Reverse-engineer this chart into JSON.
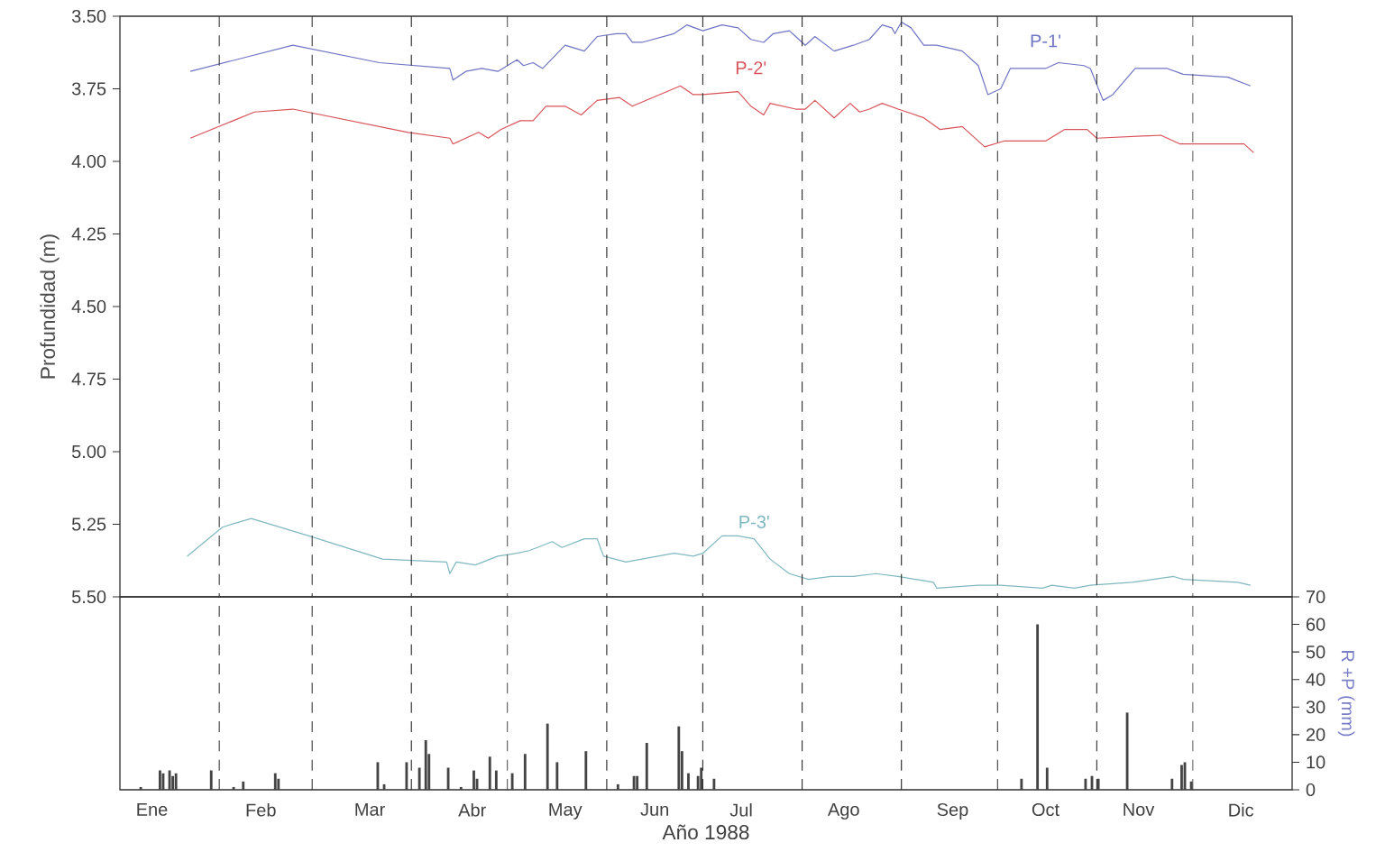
{
  "chart_data": [
    {
      "type": "line",
      "ylabel": "Profundidad (m)",
      "tick_labels": "y",
      "xlim": [
        "1988-01-01",
        "1989-01-01"
      ],
      "ylim": [
        5.5,
        3.5
      ],
      "yticks": [
        {
          "value": 3.5,
          "label": "3.50"
        },
        {
          "value": 3.75,
          "label": "3.75"
        },
        {
          "value": 4.0,
          "label": "4.00"
        },
        {
          "value": 4.25,
          "label": "4.25"
        },
        {
          "value": 4.5,
          "label": "4.50"
        },
        {
          "value": 4.75,
          "label": "4.75"
        },
        {
          "value": 5.0,
          "label": "5.00"
        },
        {
          "value": 5.25,
          "label": "5.25"
        },
        {
          "value": 5.5,
          "label": "5.50"
        }
      ],
      "line_style": "solid",
      "ref_lines": [
        {
          "axis": "x",
          "value": "1988-02-01",
          "line_style": "dashed",
          "color": "#333333"
        },
        {
          "axis": "x",
          "value": "1988-03-01",
          "line_style": "dashed",
          "color": "#333333"
        },
        {
          "axis": "x",
          "value": "1988-04-01",
          "line_style": "dashed",
          "color": "#333333"
        },
        {
          "axis": "x",
          "value": "1988-05-01",
          "line_style": "dashed",
          "color": "#333333"
        },
        {
          "axis": "x",
          "value": "1988-06-01",
          "line_style": "dashed",
          "color": "#333333"
        },
        {
          "axis": "x",
          "value": "1988-07-01",
          "line_style": "dashed",
          "color": "#333333"
        },
        {
          "axis": "x",
          "value": "1988-08-01",
          "line_style": "dashed",
          "color": "#333333"
        },
        {
          "axis": "x",
          "value": "1988-09-01",
          "line_style": "dashed",
          "color": "#333333"
        },
        {
          "axis": "x",
          "value": "1988-10-01",
          "line_style": "dashed",
          "color": "#333333"
        },
        {
          "axis": "x",
          "value": "1988-11-01",
          "line_style": "dashed",
          "color": "#333333"
        },
        {
          "axis": "x",
          "value": "1988-12-01",
          "line_style": "dashed",
          "color": "#333333"
        }
      ],
      "series": [
        {
          "name": "P-1'",
          "color": "#6f74c4",
          "x": [
            "1988-01-23",
            "1988-02-24",
            "1988-03-22",
            "1988-04-13",
            "1988-04-14",
            "1988-04-18",
            "1988-04-23",
            "1988-04-28",
            "1988-05-04",
            "1988-05-06",
            "1988-05-09",
            "1988-05-12",
            "1988-05-19",
            "1988-05-25",
            "1988-05-29",
            "1988-06-04",
            "1988-06-07",
            "1988-06-09",
            "1988-06-12",
            "1988-06-22",
            "1988-06-26",
            "1988-07-01",
            "1988-07-07",
            "1988-07-12",
            "1988-07-16",
            "1988-07-20",
            "1988-07-23",
            "1988-07-28",
            "1988-07-30",
            "1988-08-02",
            "1988-08-05",
            "1988-08-11",
            "1988-08-17",
            "1988-08-22",
            "1988-08-26",
            "1988-08-29",
            "1988-08-30",
            "1988-09-01",
            "1988-09-04",
            "1988-09-08",
            "1988-09-12",
            "1988-09-20",
            "1988-09-25",
            "1988-09-28",
            "1988-10-02",
            "1988-10-05",
            "1988-10-16",
            "1988-10-20",
            "1988-10-28",
            "1988-10-30",
            "1988-11-03",
            "1988-11-06",
            "1988-11-13",
            "1988-11-19",
            "1988-11-23",
            "1988-11-28",
            "1988-12-12",
            "1988-12-19"
          ],
          "values": [
            3.69,
            3.6,
            3.66,
            3.68,
            3.72,
            3.69,
            3.68,
            3.69,
            3.65,
            3.67,
            3.66,
            3.68,
            3.6,
            3.62,
            3.57,
            3.56,
            3.56,
            3.59,
            3.59,
            3.56,
            3.53,
            3.55,
            3.53,
            3.54,
            3.58,
            3.59,
            3.56,
            3.55,
            3.57,
            3.6,
            3.57,
            3.62,
            3.6,
            3.58,
            3.53,
            3.54,
            3.56,
            3.52,
            3.54,
            3.6,
            3.6,
            3.62,
            3.67,
            3.77,
            3.75,
            3.68,
            3.68,
            3.66,
            3.67,
            3.68,
            3.79,
            3.77,
            3.68,
            3.68,
            3.68,
            3.7,
            3.71,
            3.74
          ]
        },
        {
          "name": "P-2'",
          "color": "#d9545a",
          "x": [
            "1988-01-23",
            "1988-02-12",
            "1988-02-24",
            "1988-03-31",
            "1988-04-13",
            "1988-04-14",
            "1988-04-18",
            "1988-04-22",
            "1988-04-25",
            "1988-04-29",
            "1988-05-05",
            "1988-05-09",
            "1988-05-13",
            "1988-05-19",
            "1988-05-24",
            "1988-05-29",
            "1988-06-05",
            "1988-06-09",
            "1988-06-24",
            "1988-06-28",
            "1988-07-01",
            "1988-07-12",
            "1988-07-16",
            "1988-07-20",
            "1988-07-22",
            "1988-07-30",
            "1988-08-02",
            "1988-08-05",
            "1988-08-11",
            "1988-08-16",
            "1988-08-19",
            "1988-08-22",
            "1988-08-26",
            "1988-08-31",
            "1988-09-08",
            "1988-09-13",
            "1988-09-20",
            "1988-09-27",
            "1988-10-03",
            "1988-10-16",
            "1988-10-22",
            "1988-10-29",
            "1988-11-01",
            "1988-11-21",
            "1988-11-27",
            "1988-12-17",
            "1988-12-20"
          ],
          "values": [
            3.92,
            3.83,
            3.82,
            3.9,
            3.92,
            3.94,
            3.92,
            3.9,
            3.92,
            3.89,
            3.86,
            3.86,
            3.81,
            3.81,
            3.84,
            3.79,
            3.78,
            3.81,
            3.74,
            3.77,
            3.77,
            3.76,
            3.81,
            3.84,
            3.8,
            3.82,
            3.82,
            3.79,
            3.85,
            3.8,
            3.83,
            3.82,
            3.8,
            3.82,
            3.85,
            3.89,
            3.88,
            3.95,
            3.93,
            3.93,
            3.89,
            3.89,
            3.92,
            3.91,
            3.94,
            3.94,
            3.97
          ]
        },
        {
          "name": "P-3'",
          "color": "#7fb8c0",
          "x": [
            "1988-01-22",
            "1988-02-02",
            "1988-02-11",
            "1988-02-29",
            "1988-03-23",
            "1988-04-12",
            "1988-04-13",
            "1988-04-15",
            "1988-04-21",
            "1988-04-28",
            "1988-05-04",
            "1988-05-08",
            "1988-05-15",
            "1988-05-18",
            "1988-05-25",
            "1988-05-29",
            "1988-05-31",
            "1988-06-07",
            "1988-06-22",
            "1988-06-28",
            "1988-07-01",
            "1988-07-07",
            "1988-07-12",
            "1988-07-17",
            "1988-07-22",
            "1988-07-28",
            "1988-08-03",
            "1988-08-10",
            "1988-08-17",
            "1988-08-24",
            "1988-08-31",
            "1988-09-11",
            "1988-09-12",
            "1988-09-25",
            "1988-10-02",
            "1988-10-15",
            "1988-10-18",
            "1988-10-25",
            "1988-10-30",
            "1988-11-12",
            "1988-11-25",
            "1988-11-28",
            "1988-12-15",
            "1988-12-19"
          ],
          "values": [
            5.36,
            5.26,
            5.23,
            5.29,
            5.37,
            5.38,
            5.42,
            5.38,
            5.39,
            5.36,
            5.35,
            5.34,
            5.31,
            5.33,
            5.3,
            5.3,
            5.36,
            5.38,
            5.35,
            5.36,
            5.35,
            5.29,
            5.29,
            5.3,
            5.37,
            5.42,
            5.44,
            5.43,
            5.43,
            5.42,
            5.43,
            5.45,
            5.47,
            5.46,
            5.46,
            5.47,
            5.46,
            5.47,
            5.46,
            5.45,
            5.43,
            5.44,
            5.45,
            5.46
          ]
        }
      ]
    },
    {
      "type": "bar",
      "xlabel": "Año 1988",
      "y2label": "R +P (mm)",
      "xlim": [
        "1988-01-01",
        "1989-01-01"
      ],
      "xticks": [
        {
          "value": "1988-01-11",
          "label": "Ene"
        },
        {
          "value": "1988-02-14",
          "label": "Feb"
        },
        {
          "value": "1988-03-19",
          "label": "Mar"
        },
        {
          "value": "1988-04-20",
          "label": "Abr"
        },
        {
          "value": "1988-05-19",
          "label": "May"
        },
        {
          "value": "1988-06-16",
          "label": "Jun"
        },
        {
          "value": "1988-07-13",
          "label": "Jul"
        },
        {
          "value": "1988-08-14",
          "label": "Ago"
        },
        {
          "value": "1988-09-17",
          "label": "Sep"
        },
        {
          "value": "1988-10-16",
          "label": "Oct"
        },
        {
          "value": "1988-11-14",
          "label": "Nov"
        },
        {
          "value": "1988-12-16",
          "label": "Dic"
        }
      ],
      "y2lim": [
        0,
        70
      ],
      "y2ticks": [
        0,
        10,
        20,
        30,
        40,
        50,
        60,
        70
      ],
      "ref_lines": [
        {
          "axis": "x",
          "value": "1988-02-01",
          "line_style": "dashed",
          "color": "#333333"
        },
        {
          "axis": "x",
          "value": "1988-03-01",
          "line_style": "dashed",
          "color": "#333333"
        },
        {
          "axis": "x",
          "value": "1988-04-01",
          "line_style": "dashed",
          "color": "#333333"
        },
        {
          "axis": "x",
          "value": "1988-05-01",
          "line_style": "dashed",
          "color": "#333333"
        },
        {
          "axis": "x",
          "value": "1988-06-01",
          "line_style": "dashed",
          "color": "#333333"
        },
        {
          "axis": "x",
          "value": "1988-07-01",
          "line_style": "dashed",
          "color": "#333333"
        },
        {
          "axis": "x",
          "value": "1988-08-01",
          "line_style": "dashed",
          "color": "#333333"
        },
        {
          "axis": "x",
          "value": "1988-09-01",
          "line_style": "dashed",
          "color": "#333333"
        },
        {
          "axis": "x",
          "value": "1988-10-01",
          "line_style": "dashed",
          "color": "#333333"
        },
        {
          "axis": "x",
          "value": "1988-11-01",
          "line_style": "dashed",
          "color": "#333333"
        },
        {
          "axis": "x",
          "value": "1988-12-01",
          "line_style": "dashed",
          "color": "#333333"
        }
      ],
      "series": [
        {
          "axis": "y2",
          "color": "#444444",
          "x": [
            "1988-01-07",
            "1988-01-13",
            "1988-01-14",
            "1988-01-16",
            "1988-01-17",
            "1988-01-18",
            "1988-01-29",
            "1988-02-05",
            "1988-02-08",
            "1988-02-18",
            "1988-02-19",
            "1988-03-21",
            "1988-03-23",
            "1988-03-30",
            "1988-04-03",
            "1988-04-05",
            "1988-04-06",
            "1988-04-12",
            "1988-04-16",
            "1988-04-20",
            "1988-04-21",
            "1988-04-25",
            "1988-04-27",
            "1988-05-02",
            "1988-05-06",
            "1988-05-13",
            "1988-05-16",
            "1988-05-25",
            "1988-06-04",
            "1988-06-09",
            "1988-06-10",
            "1988-06-13",
            "1988-06-23",
            "1988-06-24",
            "1988-06-26",
            "1988-06-29",
            "1988-06-30",
            "1988-07-04",
            "1988-10-08",
            "1988-10-13",
            "1988-10-16",
            "1988-10-28",
            "1988-10-30",
            "1988-11-01",
            "1988-11-10",
            "1988-11-24",
            "1988-11-27",
            "1988-11-28",
            "1988-11-30"
          ],
          "values": [
            1,
            7,
            6,
            7,
            5,
            6,
            7,
            1,
            3,
            6,
            4,
            10,
            2,
            10,
            8,
            18,
            13,
            8,
            1,
            7,
            4,
            12,
            7,
            6,
            13,
            24,
            10,
            14,
            2,
            5,
            5,
            17,
            23,
            14,
            6,
            5,
            8,
            4,
            4,
            60,
            8,
            4,
            5,
            4,
            28,
            4,
            9,
            10,
            3
          ]
        }
      ]
    }
  ]
}
